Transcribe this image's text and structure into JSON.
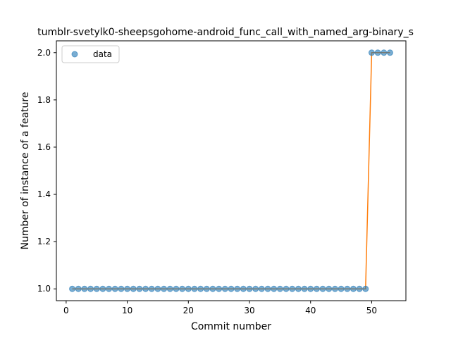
{
  "chart_data": {
    "type": "scatter",
    "title": "tumblr-svetylk0-sheepsgohome-android_func_call_with_named_arg-binary_s",
    "xlabel": "Commit number",
    "ylabel": "Number of instance of a feature",
    "xlim": [
      -1.6,
      55.6
    ],
    "ylim": [
      0.95,
      2.05
    ],
    "xticks": [
      0,
      10,
      20,
      30,
      40,
      50
    ],
    "yticks": [
      1.0,
      1.2,
      1.4,
      1.6,
      1.8,
      2.0
    ],
    "xtick_labels": [
      "0",
      "10",
      "20",
      "30",
      "40",
      "50"
    ],
    "ytick_labels": [
      "1.0",
      "1.2",
      "1.4",
      "1.6",
      "1.8",
      "2.0"
    ],
    "legend": {
      "position": "top-left",
      "entries": [
        "data"
      ]
    },
    "grid": false,
    "series": [
      {
        "name": "data",
        "kind": "points",
        "color": "#1f77b4",
        "x": [
          1,
          2,
          3,
          4,
          5,
          6,
          7,
          8,
          9,
          10,
          11,
          12,
          13,
          14,
          15,
          16,
          17,
          18,
          19,
          20,
          21,
          22,
          23,
          24,
          25,
          26,
          27,
          28,
          29,
          30,
          31,
          32,
          33,
          34,
          35,
          36,
          37,
          38,
          39,
          40,
          41,
          42,
          43,
          44,
          45,
          46,
          47,
          48,
          49,
          50,
          51,
          52,
          53
        ],
        "y": [
          1,
          1,
          1,
          1,
          1,
          1,
          1,
          1,
          1,
          1,
          1,
          1,
          1,
          1,
          1,
          1,
          1,
          1,
          1,
          1,
          1,
          1,
          1,
          1,
          1,
          1,
          1,
          1,
          1,
          1,
          1,
          1,
          1,
          1,
          1,
          1,
          1,
          1,
          1,
          1,
          1,
          1,
          1,
          1,
          1,
          1,
          1,
          1,
          1,
          2,
          2,
          2,
          2
        ]
      },
      {
        "kind": "line",
        "color": "#ff7f0e",
        "x": [
          1,
          2,
          3,
          4,
          5,
          6,
          7,
          8,
          9,
          10,
          11,
          12,
          13,
          14,
          15,
          16,
          17,
          18,
          19,
          20,
          21,
          22,
          23,
          24,
          25,
          26,
          27,
          28,
          29,
          30,
          31,
          32,
          33,
          34,
          35,
          36,
          37,
          38,
          39,
          40,
          41,
          42,
          43,
          44,
          45,
          46,
          47,
          48,
          49,
          50,
          51,
          52,
          53
        ],
        "y": [
          1,
          1,
          1,
          1,
          1,
          1,
          1,
          1,
          1,
          1,
          1,
          1,
          1,
          1,
          1,
          1,
          1,
          1,
          1,
          1,
          1,
          1,
          1,
          1,
          1,
          1,
          1,
          1,
          1,
          1,
          1,
          1,
          1,
          1,
          1,
          1,
          1,
          1,
          1,
          1,
          1,
          1,
          1,
          1,
          1,
          1,
          1,
          1,
          1,
          2,
          2,
          2,
          2
        ]
      }
    ]
  }
}
